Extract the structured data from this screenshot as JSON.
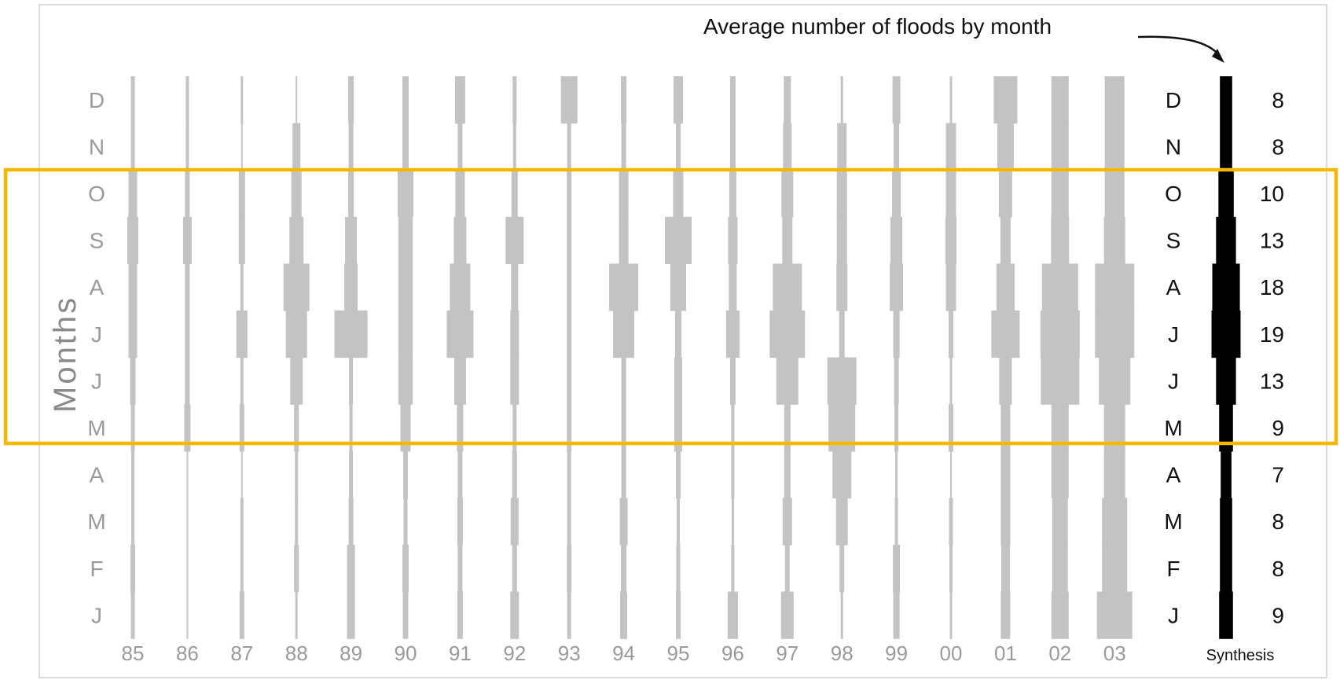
{
  "chart_data": {
    "type": "heatmap",
    "title": "",
    "annotation": "Average number of floods by month",
    "ylabel": "Months",
    "months_top_to_bottom": [
      "D",
      "N",
      "O",
      "S",
      "A",
      "J",
      "J",
      "M",
      "A",
      "M",
      "F",
      "J"
    ],
    "years": [
      "85",
      "86",
      "87",
      "88",
      "89",
      "90",
      "91",
      "92",
      "93",
      "94",
      "95",
      "96",
      "97",
      "98",
      "99",
      "00",
      "01",
      "02",
      "03"
    ],
    "widths_top_to_bottom": [
      [
        5,
        4,
        3,
        2,
        7,
        8,
        13,
        5,
        21,
        7,
        12,
        7,
        9,
        3,
        10,
        3,
        30,
        22,
        25
      ],
      [
        5,
        4,
        2,
        10,
        6,
        8,
        6,
        4,
        5,
        6,
        6,
        7,
        11,
        12,
        7,
        13,
        21,
        22,
        25
      ],
      [
        11,
        6,
        8,
        13,
        7,
        20,
        12,
        8,
        6,
        12,
        13,
        9,
        15,
        13,
        11,
        13,
        17,
        22,
        25
      ],
      [
        14,
        11,
        8,
        18,
        15,
        18,
        16,
        23,
        6,
        12,
        34,
        12,
        13,
        13,
        15,
        14,
        13,
        23,
        27
      ],
      [
        11,
        6,
        4,
        33,
        17,
        18,
        26,
        9,
        6,
        37,
        20,
        10,
        37,
        14,
        17,
        13,
        23,
        46,
        50
      ],
      [
        11,
        6,
        14,
        27,
        42,
        18,
        34,
        11,
        6,
        27,
        8,
        17,
        45,
        7,
        8,
        6,
        36,
        50,
        50
      ],
      [
        7,
        6,
        4,
        16,
        5,
        18,
        15,
        11,
        6,
        6,
        10,
        7,
        28,
        37,
        6,
        3,
        16,
        49,
        40
      ],
      [
        5,
        8,
        6,
        6,
        4,
        13,
        8,
        5,
        6,
        6,
        10,
        4,
        8,
        34,
        5,
        6,
        12,
        22,
        27
      ],
      [
        4,
        2,
        2,
        4,
        5,
        6,
        6,
        6,
        5,
        6,
        6,
        4,
        8,
        24,
        3,
        2,
        12,
        22,
        27
      ],
      [
        4,
        2,
        4,
        4,
        6,
        5,
        7,
        10,
        5,
        10,
        4,
        3,
        12,
        15,
        4,
        5,
        12,
        20,
        32
      ],
      [
        6,
        2,
        4,
        6,
        10,
        8,
        6,
        6,
        6,
        7,
        5,
        4,
        6,
        6,
        9,
        4,
        11,
        20,
        32
      ],
      [
        5,
        2,
        6,
        3,
        10,
        7,
        7,
        11,
        5,
        9,
        6,
        13,
        16,
        3,
        8,
        3,
        12,
        22,
        45
      ]
    ],
    "synthesis": {
      "label": "Synthesis",
      "counts_top_to_bottom": [
        8,
        8,
        10,
        13,
        18,
        19,
        13,
        9,
        7,
        8,
        8,
        9
      ]
    },
    "highlight": {
      "months": [
        "O",
        "S",
        "A",
        "J",
        "J",
        "M"
      ],
      "color": "#f5b700"
    },
    "bar_color": "#c3c3c3",
    "synthesis_color": "#000000",
    "grid": false,
    "legend": "none"
  }
}
